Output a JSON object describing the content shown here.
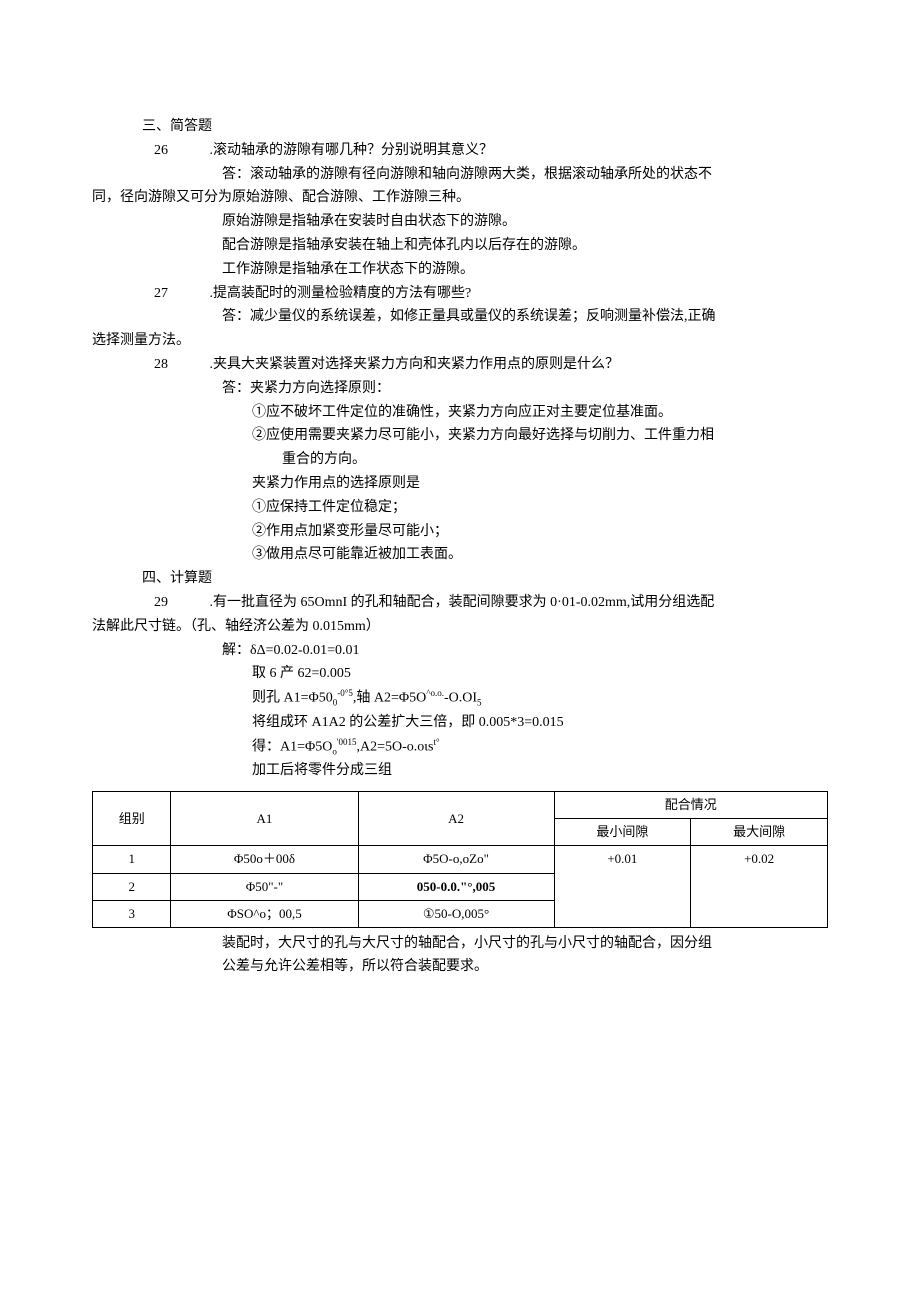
{
  "section3": {
    "heading": "三、简答题",
    "q26": {
      "num": "26",
      "text": ".滚动轴承的游隙有哪几种？分别说明其意义？",
      "ans1": "答：滚动轴承的游隙有径向游隙和轴向游隙两大类，根据滚动轴承所处的状态不",
      "ans1b": "同，径向游隙又可分为原始游隙、配合游隙、工作游隙三种。",
      "ans2": "原始游隙是指轴承在安装时自由状态下的游隙。",
      "ans3": "配合游隙是指轴承安装在轴上和壳体孔内以后存在的游隙。",
      "ans4": "工作游隙是指轴承在工作状态下的游隙。"
    },
    "q27": {
      "num": "27",
      "text": ".提高装配时的测量检验精度的方法有哪些?",
      "ans1": "答：减少量仪的系统误差，如修正量具或量仪的系统误差；反响测量补偿法,正确",
      "ans1b": "选择测量方法。"
    },
    "q28": {
      "num": "28",
      "text": ".夹具大夹紧装置对选择夹紧力方向和夹紧力作用点的原则是什么？",
      "ans1": "答：夹紧力方向选择原则：",
      "sub1": "①应不破坏工件定位的准确性，夹紧力方向应正对主要定位基准面。",
      "sub2": "②应使用需要夹紧力尽可能小，夹紧力方向最好选择与切削力、工件重力相",
      "sub2b": "重合的方向。",
      "ans2": "夹紧力作用点的选择原则是",
      "sub3": "①应保持工件定位稳定；",
      "sub4": "②作用点加紧变形量尽可能小；",
      "sub5": "③做用点尽可能靠近被加工表面。"
    }
  },
  "section4": {
    "heading": "四、计算题",
    "q29": {
      "num": "29",
      "text": ".有一批直径为 65OmnI 的孔和轴配合，装配间隙要求为 0·01-0.02mm,试用分组选配",
      "text2": "法解此尺寸链。（孔、轴经济公差为 0.015mm）",
      "s1": "解：δΔ=0.02-0.01=0.01",
      "s2": "取 6 产 62=0.005",
      "s3_a": "则孔 A1=Φ50",
      "s3_b": "0",
      "s3_c": "-0°5",
      "s3_d": ",轴 A2=Φ5O",
      "s3_e": "^o.o.",
      "s3_f": "-O.OI",
      "s3_g": "5",
      "s4": "将组成环 A1A2 的公差扩大三倍，即 0.005*3=0.015",
      "s5_a": "得：A1=Φ5O",
      "s5_b": "o",
      "s5_c": "'0015",
      "s5_d": ",A2=5O-o.oιs",
      "s5_e": "t°",
      "s6": "加工后将零件分成三组"
    }
  },
  "table": {
    "headers": {
      "h1": "组别",
      "h2": "A1",
      "h3": "A2",
      "h4": "配合情况",
      "h4a": "最小间隙",
      "h4b": "最大间隙"
    },
    "rows": [
      {
        "c1": "1",
        "c2": "Φ50o＋00δ",
        "c3": "Φ5O-o,oZο\"",
        "c4": "+0.01",
        "c5": "+0.02"
      },
      {
        "c1": "2",
        "c2": "Φ50\"-\"",
        "c3": "050-0.0.\"°,005",
        "c4": "",
        "c5": ""
      },
      {
        "c1": "3",
        "c2": "ΦSO^o；00,5",
        "c3": "①50-O,005°",
        "c4": "",
        "c5": ""
      }
    ]
  },
  "closing": {
    "l1": "装配时，大尺寸的孔与大尺寸的轴配合，小尺寸的孔与小尺寸的轴配合，因分组",
    "l2": "公差与允许公差相等，所以符合装配要求。"
  }
}
